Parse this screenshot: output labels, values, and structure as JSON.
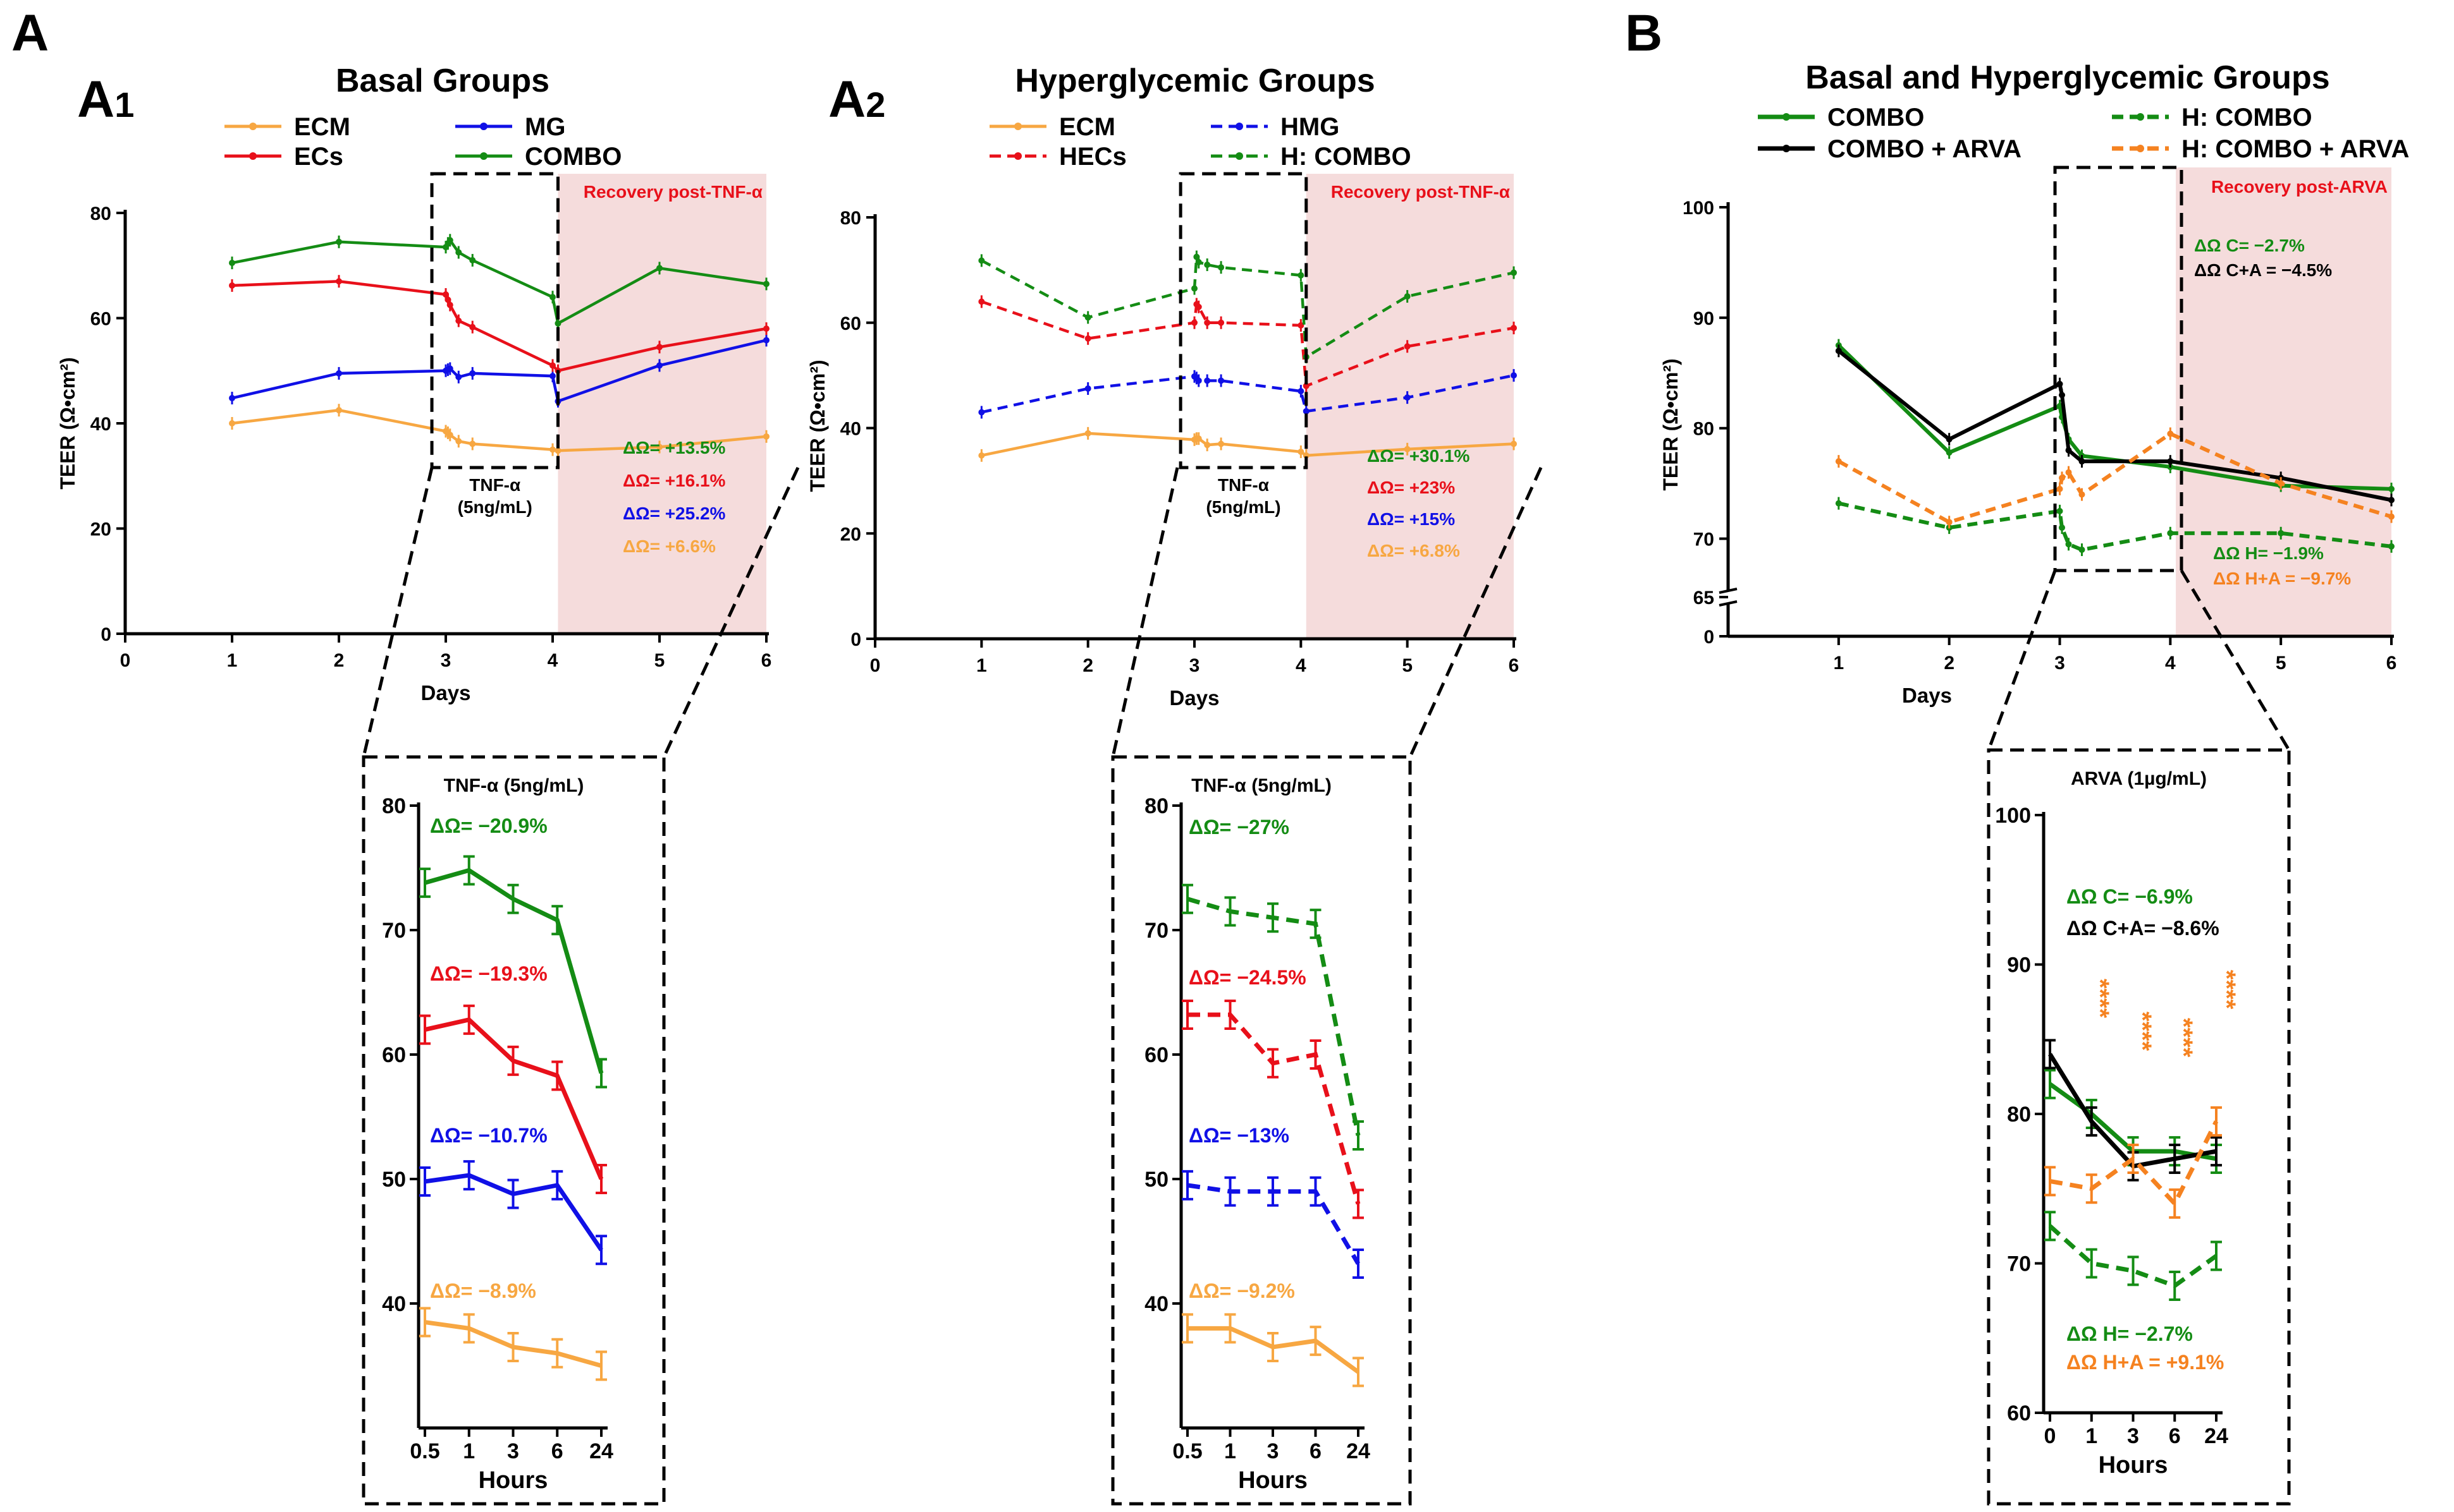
{
  "panel_letters": {
    "a": "A",
    "a1": "A",
    "a1_sub": "1",
    "a2": "A",
    "a2_sub": "2",
    "b": "B"
  },
  "colors": {
    "orange": "#F7A742",
    "red": "#E8101A",
    "blue": "#1010E6",
    "green": "#148C14",
    "black": "#000000",
    "dorange": "#F58220",
    "shade": "#F5DCDC"
  },
  "chart_data": [
    {
      "id": "A1",
      "type": "line",
      "title": "Basal Groups",
      "xlabel": "Days",
      "ylabel": "TEER (Ω•cm²)",
      "xlim": [
        0,
        6
      ],
      "ylim": [
        0,
        80
      ],
      "xticks": [
        "0",
        "1",
        "2",
        "3",
        "4",
        "5",
        "6"
      ],
      "yticks": [
        "0",
        "20",
        "40",
        "60",
        "80"
      ],
      "shade_label": "Recovery post-TNF-α",
      "box_label": [
        "TNF-α",
        "(5ng/mL)"
      ],
      "legend": [
        "ECM",
        "MG",
        "ECs",
        "COMBO"
      ],
      "series": [
        {
          "name": "ECM",
          "color": "orange",
          "dash": false,
          "x": [
            1,
            2,
            3,
            3.02,
            3.04,
            3.12,
            3.25,
            4,
            4.05,
            5,
            6
          ],
          "y": [
            40,
            42.5,
            38.5,
            38.2,
            37.8,
            36.6,
            36.1,
            35,
            34.8,
            35.5,
            37.5
          ]
        },
        {
          "name": "MG",
          "color": "blue",
          "dash": false,
          "x": [
            1,
            2,
            3,
            3.02,
            3.04,
            3.12,
            3.25,
            4,
            4.05,
            5,
            6
          ],
          "y": [
            44.8,
            49.5,
            50,
            50.2,
            50.4,
            48.8,
            49.5,
            49,
            44.2,
            51,
            55.8
          ]
        },
        {
          "name": "ECs",
          "color": "red",
          "dash": false,
          "x": [
            1,
            2,
            3,
            3.02,
            3.04,
            3.12,
            3.25,
            4,
            4.05,
            5,
            6
          ],
          "y": [
            66.2,
            67,
            64.5,
            63.5,
            62.5,
            59.5,
            58.3,
            51,
            50,
            54.5,
            58
          ]
        },
        {
          "name": "COMBO",
          "color": "green",
          "dash": false,
          "x": [
            1,
            2,
            3,
            3.02,
            3.04,
            3.12,
            3.25,
            4,
            4.05,
            5,
            6
          ],
          "y": [
            70.5,
            74.5,
            73.5,
            74.2,
            74.8,
            72.5,
            71,
            64,
            59,
            69.5,
            66.5
          ]
        }
      ],
      "annotations": [
        {
          "text": "ΔΩ= +13.5%",
          "color": "green"
        },
        {
          "text": "ΔΩ= +16.1%",
          "color": "red"
        },
        {
          "text": "ΔΩ= +25.2%",
          "color": "blue"
        },
        {
          "text": "ΔΩ= +6.6%",
          "color": "orange"
        }
      ]
    },
    {
      "id": "A1-inset",
      "type": "line",
      "title": "TNF-α  (5ng/mL)",
      "xlabel": "Hours",
      "ylim": [
        30,
        80
      ],
      "xticks": [
        "0.5",
        "1",
        "3",
        "6",
        "24"
      ],
      "yticks": [
        "40",
        "50",
        "60",
        "70",
        "80"
      ],
      "series": [
        {
          "name": "COMBO",
          "color": "green",
          "dash": false,
          "y": [
            73.8,
            74.8,
            72.5,
            70.8,
            58.5
          ]
        },
        {
          "name": "ECs",
          "color": "red",
          "dash": false,
          "y": [
            62,
            62.8,
            59.5,
            58.3,
            50
          ]
        },
        {
          "name": "MG",
          "color": "blue",
          "dash": false,
          "y": [
            49.8,
            50.3,
            48.8,
            49.5,
            44.3
          ]
        },
        {
          "name": "ECM",
          "color": "orange",
          "dash": false,
          "y": [
            38.5,
            38,
            36.5,
            36,
            35
          ]
        }
      ],
      "annotations": [
        {
          "text": "ΔΩ= −20.9%",
          "color": "green"
        },
        {
          "text": "ΔΩ= −19.3%",
          "color": "red"
        },
        {
          "text": "ΔΩ= −10.7%",
          "color": "blue"
        },
        {
          "text": "ΔΩ= −8.9%",
          "color": "orange"
        }
      ]
    },
    {
      "id": "A2",
      "type": "line",
      "title": "Hyperglycemic Groups",
      "xlabel": "Days",
      "ylabel": "TEER (Ω•cm²)",
      "xlim": [
        0,
        6
      ],
      "ylim": [
        0,
        80
      ],
      "xticks": [
        "0",
        "1",
        "2",
        "3",
        "4",
        "5",
        "6"
      ],
      "yticks": [
        "0",
        "20",
        "40",
        "60",
        "80"
      ],
      "shade_label": "Recovery post-TNF-α",
      "box_label": [
        "TNF-α",
        "(5ng/mL)"
      ],
      "legend": [
        "ECM",
        "HMG",
        "HECs",
        "H: COMBO"
      ],
      "series": [
        {
          "name": "ECM",
          "color": "orange",
          "dash": false,
          "x": [
            1,
            2,
            3,
            3.02,
            3.04,
            3.12,
            3.25,
            4,
            4.05,
            5,
            6
          ],
          "y": [
            34.8,
            39,
            37.8,
            38,
            38,
            36.8,
            37,
            35.5,
            34.8,
            36,
            37
          ]
        },
        {
          "name": "HMG",
          "color": "blue",
          "dash": true,
          "x": [
            1,
            2,
            3,
            3.02,
            3.04,
            3.12,
            3.25,
            4,
            4.05,
            5,
            6
          ],
          "y": [
            43,
            47.5,
            49.8,
            49.5,
            49,
            49,
            49,
            47,
            43.2,
            45.8,
            50
          ]
        },
        {
          "name": "HECs",
          "color": "red",
          "dash": true,
          "x": [
            1,
            2,
            3,
            3.02,
            3.04,
            3.12,
            3.25,
            4,
            4.05,
            5,
            6
          ],
          "y": [
            64,
            57,
            60,
            63.5,
            63,
            60,
            60,
            59.5,
            48,
            55.5,
            59
          ]
        },
        {
          "name": "H: COMBO",
          "color": "green",
          "dash": true,
          "x": [
            1,
            2,
            3,
            3.02,
            3.04,
            3.12,
            3.25,
            4,
            4.05,
            5,
            6
          ],
          "y": [
            71.8,
            61,
            66.5,
            72.5,
            71.5,
            71,
            70.5,
            69,
            53.5,
            65,
            69.5
          ]
        }
      ],
      "annotations": [
        {
          "text": "ΔΩ= +30.1%",
          "color": "green"
        },
        {
          "text": "ΔΩ= +23%",
          "color": "red"
        },
        {
          "text": "ΔΩ= +15%",
          "color": "blue"
        },
        {
          "text": "ΔΩ= +6.8%",
          "color": "orange"
        }
      ]
    },
    {
      "id": "A2-inset",
      "type": "line",
      "title": "TNF-α  (5ng/mL)",
      "xlabel": "Hours",
      "ylim": [
        30,
        80
      ],
      "xticks": [
        "0.5",
        "1",
        "3",
        "6",
        "24"
      ],
      "yticks": [
        "40",
        "50",
        "60",
        "70",
        "80"
      ],
      "series": [
        {
          "name": "H: COMBO",
          "color": "green",
          "dash": true,
          "y": [
            72.5,
            71.5,
            71,
            70.5,
            53.5
          ]
        },
        {
          "name": "HECs",
          "color": "red",
          "dash": true,
          "y": [
            63.2,
            63.2,
            59.3,
            60,
            48
          ]
        },
        {
          "name": "HMG",
          "color": "blue",
          "dash": true,
          "y": [
            49.5,
            49,
            49,
            49,
            43.2
          ]
        },
        {
          "name": "ECM",
          "color": "orange",
          "dash": false,
          "y": [
            38,
            38,
            36.5,
            37,
            34.5
          ]
        }
      ],
      "annotations": [
        {
          "text": "ΔΩ= −27%",
          "color": "green"
        },
        {
          "text": "ΔΩ= −24.5%",
          "color": "red"
        },
        {
          "text": "ΔΩ= −13%",
          "color": "blue"
        },
        {
          "text": "ΔΩ= −9.2%",
          "color": "orange"
        }
      ]
    },
    {
      "id": "B",
      "type": "line",
      "title": "Basal and Hyperglycemic Groups",
      "xlabel": "Days",
      "ylabel": "TEER (Ω•cm²)",
      "xlim": [
        0,
        6
      ],
      "ylim_broken": [
        [
          0,
          0
        ],
        [
          65,
          100
        ]
      ],
      "xticks": [
        "1",
        "2",
        "3",
        "4",
        "5",
        "6"
      ],
      "yticks": [
        "0",
        "65",
        "70",
        "80",
        "90",
        "100"
      ],
      "shade_label": "Recovery post-ARVA",
      "legend": [
        "COMBO",
        "H: COMBO",
        "COMBO + ARVA",
        "H: COMBO + ARVA"
      ],
      "series": [
        {
          "name": "COMBO",
          "color": "green",
          "dash": false,
          "x": [
            1,
            2,
            3,
            3.02,
            3.08,
            3.2,
            4,
            5,
            6
          ],
          "y": [
            87.5,
            77.8,
            82,
            81,
            79,
            77.5,
            76.5,
            74.8,
            74.5
          ]
        },
        {
          "name": "COMBO + ARVA",
          "color": "black",
          "dash": false,
          "x": [
            1,
            2,
            3,
            3.02,
            3.08,
            3.2,
            4,
            5,
            6
          ],
          "y": [
            87,
            79,
            84,
            83,
            78,
            77,
            77,
            75.5,
            73.5
          ]
        },
        {
          "name": "H: COMBO",
          "color": "green",
          "dash": true,
          "x": [
            1,
            2,
            3,
            3.02,
            3.08,
            3.2,
            4,
            5,
            6
          ],
          "y": [
            73.2,
            71,
            72.5,
            71,
            69.5,
            69,
            70.5,
            70.5,
            69.3
          ]
        },
        {
          "name": "H: COMBO + ARVA",
          "color": "dorange",
          "dash": true,
          "x": [
            1,
            2,
            3,
            3.02,
            3.08,
            3.2,
            4,
            5,
            6
          ],
          "y": [
            77,
            71.5,
            74.5,
            75.5,
            76,
            74,
            79.5,
            75,
            72
          ]
        }
      ],
      "annotations": [
        {
          "text": "ΔΩ C= −2.7%",
          "color": "green"
        },
        {
          "text": "ΔΩ C+A = −4.5%",
          "color": "black"
        },
        {
          "text": "ΔΩ H= −1.9%",
          "color": "green"
        },
        {
          "text": "ΔΩ H+A = −9.7%",
          "color": "dorange"
        }
      ]
    },
    {
      "id": "B-inset",
      "type": "line",
      "title": "ARVA (1µg/mL)",
      "xlabel": "Hours",
      "ylim": [
        60,
        100
      ],
      "xticks": [
        "0",
        "1",
        "3",
        "6",
        "24"
      ],
      "yticks": [
        "60",
        "70",
        "80",
        "90",
        "100"
      ],
      "significance": "****",
      "series": [
        {
          "name": "COMBO",
          "color": "green",
          "dash": false,
          "y": [
            82,
            80,
            77.5,
            77.5,
            77
          ]
        },
        {
          "name": "COMBO + ARVA",
          "color": "black",
          "dash": false,
          "y": [
            84,
            79.5,
            76.5,
            77,
            77.5
          ]
        },
        {
          "name": "H: COMBO",
          "color": "green",
          "dash": true,
          "y": [
            72.5,
            70,
            69.5,
            68.5,
            70.5
          ]
        },
        {
          "name": "H: COMBO + ARVA",
          "color": "dorange",
          "dash": true,
          "y": [
            75.5,
            75,
            77,
            74,
            79.5
          ]
        }
      ],
      "annotations": [
        {
          "text": "ΔΩ C= −6.9%",
          "color": "green"
        },
        {
          "text": "ΔΩ C+A= −8.6%",
          "color": "black"
        },
        {
          "text": "ΔΩ H= −2.7%",
          "color": "green"
        },
        {
          "text": "ΔΩ H+A = +9.1%",
          "color": "dorange"
        }
      ]
    }
  ]
}
